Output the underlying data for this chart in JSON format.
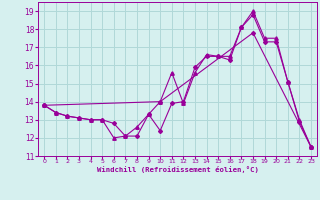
{
  "xlabel": "Windchill (Refroidissement éolien,°C)",
  "ylabel": "",
  "xlim": [
    -0.5,
    23.5
  ],
  "ylim": [
    11,
    19.5
  ],
  "yticks": [
    11,
    12,
    13,
    14,
    15,
    16,
    17,
    18,
    19
  ],
  "xticks": [
    0,
    1,
    2,
    3,
    4,
    5,
    6,
    7,
    8,
    9,
    10,
    11,
    12,
    13,
    14,
    15,
    16,
    17,
    18,
    19,
    20,
    21,
    22,
    23
  ],
  "background_color": "#d6f0ef",
  "grid_color": "#b0d8d8",
  "line_color": "#990099",
  "line1": {
    "x": [
      0,
      1,
      2,
      3,
      4,
      5,
      6,
      7,
      8,
      9,
      10,
      11,
      12,
      13,
      14,
      15,
      16,
      17,
      18,
      19,
      20,
      21,
      22,
      23
    ],
    "y": [
      13.8,
      13.4,
      13.2,
      13.1,
      13.0,
      13.0,
      12.8,
      12.1,
      12.1,
      13.3,
      12.4,
      13.9,
      14.0,
      15.9,
      16.5,
      16.5,
      16.3,
      18.1,
      18.8,
      17.3,
      17.3,
      15.1,
      12.9,
      11.5
    ]
  },
  "line2": {
    "x": [
      0,
      1,
      2,
      3,
      4,
      5,
      6,
      7,
      8,
      9,
      10,
      11,
      12,
      13,
      14,
      15,
      16,
      17,
      18,
      19,
      20,
      21,
      22,
      23
    ],
    "y": [
      13.8,
      13.4,
      13.2,
      13.1,
      13.0,
      13.0,
      12.0,
      12.1,
      12.6,
      13.3,
      14.0,
      15.6,
      13.9,
      15.6,
      16.6,
      16.5,
      16.5,
      18.1,
      19.0,
      17.5,
      17.5,
      15.1,
      13.0,
      11.5
    ]
  },
  "line3": {
    "x": [
      0,
      10,
      18,
      23
    ],
    "y": [
      13.8,
      14.0,
      17.8,
      11.5
    ]
  }
}
